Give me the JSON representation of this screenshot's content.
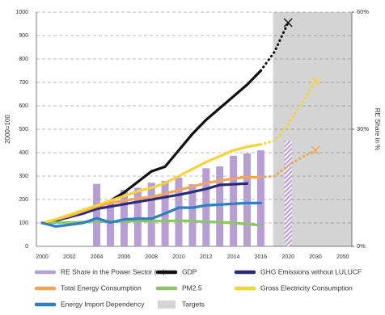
{
  "chart_data": {
    "type": "line",
    "y_label": "2000=100",
    "y2_label": "RE Share in %",
    "categories": [
      "2000",
      null,
      "2002",
      null,
      "2004",
      null,
      "2006",
      null,
      "2008",
      null,
      "2010",
      null,
      "2012",
      null,
      "2014",
      null,
      "2016",
      null,
      "2020",
      null,
      "2030",
      null,
      "2050"
    ],
    "ylim": [
      0,
      1000
    ],
    "yticks": [
      0,
      100,
      200,
      300,
      400,
      500,
      600,
      700,
      800,
      900,
      1000
    ],
    "y2lim": [
      0,
      60
    ],
    "y2ticks": [
      {
        "value": 0,
        "label": "0%"
      },
      {
        "value": 30,
        "label": "30%"
      },
      {
        "value": 60,
        "label": "60%"
      }
    ],
    "grid": true,
    "targets_label": "Targets",
    "targets_color": "#d4d4d4",
    "series": [
      {
        "name": "RE Share in the Power Sector (->)",
        "type": "bar",
        "axis": "y2",
        "color": "#b89fd3",
        "values": [
          null,
          null,
          null,
          null,
          16,
          11.4,
          14.5,
          15,
          16.3,
          16.8,
          17.6,
          15.9,
          20,
          20.5,
          23.2,
          23.8,
          24.6,
          null,
          null,
          null,
          null,
          null,
          null
        ],
        "projection": [
          null,
          null,
          null,
          null,
          null,
          null,
          null,
          null,
          null,
          null,
          null,
          null,
          null,
          null,
          null,
          null,
          null,
          null,
          27,
          null,
          null,
          null,
          null
        ]
      },
      {
        "name": "GDP",
        "color": "#111111",
        "target_marker": "x",
        "values": [
          100,
          110,
          125,
          145,
          165,
          195,
          230,
          275,
          320,
          340,
          410,
          480,
          540,
          590,
          640,
          690,
          750,
          null,
          null,
          null,
          null,
          null,
          null
        ],
        "projection": [
          null,
          null,
          null,
          null,
          null,
          null,
          null,
          null,
          null,
          null,
          null,
          null,
          null,
          null,
          null,
          null,
          750,
          830,
          955,
          null,
          null,
          null,
          null
        ]
      },
      {
        "name": "GHG Emissions without LULUCF",
        "color": "#2b2a7a",
        "values": [
          100,
          110,
          125,
          140,
          160,
          170,
          180,
          190,
          200,
          210,
          220,
          232,
          245,
          262,
          265,
          268,
          null,
          null,
          null,
          null,
          null,
          null,
          null
        ]
      },
      {
        "name": "Total Energy Consumption",
        "color": "#f0a65a",
        "target_marker": "x",
        "values": [
          100,
          115,
          130,
          150,
          170,
          185,
          195,
          205,
          210,
          225,
          240,
          255,
          270,
          280,
          290,
          295,
          295,
          null,
          null,
          null,
          null,
          null,
          null
        ],
        "projection": [
          null,
          null,
          null,
          null,
          null,
          null,
          null,
          null,
          null,
          null,
          null,
          null,
          null,
          null,
          null,
          null,
          295,
          300,
          345,
          380,
          410,
          null,
          null
        ]
      },
      {
        "name": "PM2.5",
        "color": "#8cc46c",
        "values": [
          100,
          101,
          102,
          104,
          105,
          106,
          107,
          108,
          108,
          108,
          110,
          108,
          105,
          103,
          100,
          95,
          90,
          null,
          null,
          null,
          null,
          null,
          null
        ]
      },
      {
        "name": "Gross Electricity Consumption",
        "color": "#f7d23a",
        "target_marker": "x",
        "values": [
          100,
          115,
          135,
          155,
          175,
          195,
          215,
          235,
          250,
          270,
          300,
          330,
          360,
          385,
          410,
          425,
          435,
          null,
          null,
          null,
          null,
          null,
          null
        ],
        "projection": [
          null,
          null,
          null,
          null,
          null,
          null,
          null,
          null,
          null,
          null,
          null,
          null,
          null,
          null,
          null,
          null,
          435,
          450,
          520,
          610,
          705,
          null,
          null
        ]
      },
      {
        "name": "Energy Import Dependency",
        "color": "#2f7fc1",
        "values": [
          100,
          85,
          92,
          100,
          120,
          102,
          115,
          118,
          118,
          140,
          165,
          165,
          175,
          178,
          182,
          185,
          185,
          null,
          null,
          null,
          null,
          null,
          null
        ]
      }
    ]
  }
}
